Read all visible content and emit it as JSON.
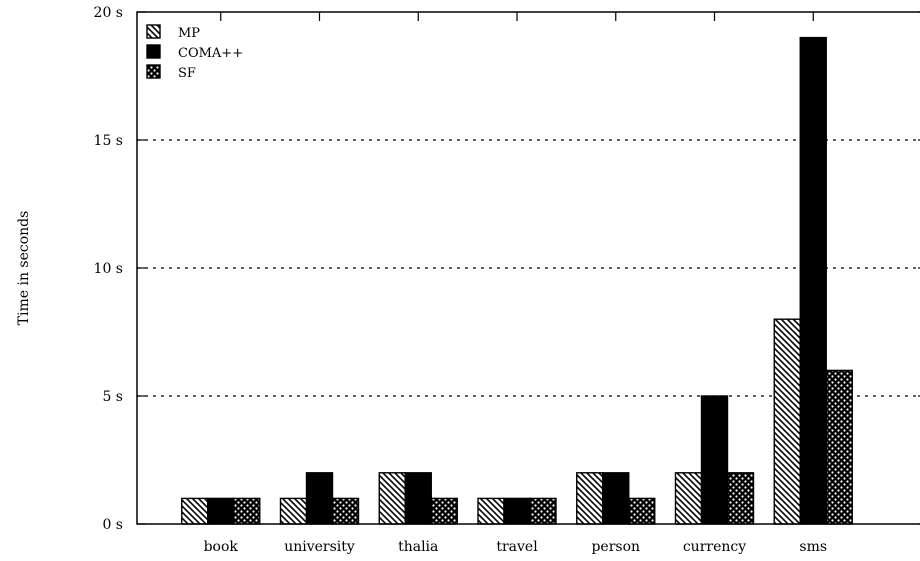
{
  "chart_data": {
    "type": "bar",
    "title": "",
    "xlabel": "",
    "ylabel": "Time in seconds",
    "categories": [
      "book",
      "university",
      "thalia",
      "travel",
      "person",
      "currency",
      "sms"
    ],
    "series": [
      {
        "name": "MP",
        "values": [
          1,
          1,
          2,
          1,
          2,
          2,
          8
        ],
        "pattern": "diagonal-hatch",
        "color": "#000000"
      },
      {
        "name": "COMA++",
        "values": [
          1,
          2,
          2,
          1,
          2,
          5,
          19
        ],
        "pattern": "solid",
        "color": "#000000"
      },
      {
        "name": "SF",
        "values": [
          1,
          1,
          1,
          1,
          1,
          2,
          6
        ],
        "pattern": "crosshatch",
        "color": "#000000"
      }
    ],
    "ylim": [
      0,
      20
    ],
    "yticks": [
      0,
      5,
      10,
      15,
      20
    ],
    "ytick_labels": [
      "0 s",
      "5 s",
      "10 s",
      "15 s",
      "20 s"
    ],
    "grid": "horizontal dotted at 5 s, 10 s, 15 s",
    "legend_position": "top-left"
  }
}
